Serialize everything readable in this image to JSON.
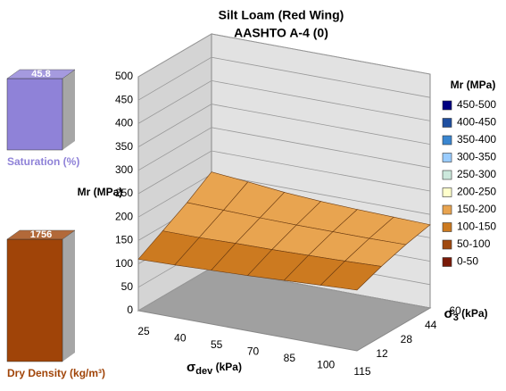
{
  "chart_data": {
    "type": "surface",
    "title": "Silt Loam (Red Wing)",
    "subtitle": "AASHTO A-4 (0)",
    "zlabel": "Mr (MPa)",
    "xlabel": {
      "symbol": "σ",
      "sub": "dev",
      "unit": " (kPa)"
    },
    "ylabel": {
      "symbol": "σ",
      "sub": "3",
      "unit": " (kPa)"
    },
    "x": [
      25,
      40,
      55,
      70,
      85,
      100,
      115
    ],
    "y": [
      12,
      28,
      44,
      60
    ],
    "values": [
      [
        110,
        112,
        115,
        118,
        122,
        126,
        130
      ],
      [
        140,
        140,
        142,
        143,
        145,
        147,
        150
      ],
      [
        170,
        168,
        166,
        165,
        165,
        165,
        166
      ],
      [
        205,
        198,
        190,
        185,
        182,
        180,
        178
      ]
    ],
    "zlim": [
      0,
      500
    ],
    "zticks": [
      0,
      50,
      100,
      150,
      200,
      250,
      300,
      350,
      400,
      450,
      500
    ],
    "legend_title": "Mr (MPa)",
    "legend": [
      {
        "label": "450-500",
        "color": "#000080"
      },
      {
        "label": "400-450",
        "color": "#1f4fa0"
      },
      {
        "label": "350-400",
        "color": "#3a86d0"
      },
      {
        "label": "300-350",
        "color": "#99ccff"
      },
      {
        "label": "250-300",
        "color": "#cce8dc"
      },
      {
        "label": "200-250",
        "color": "#ffffcc"
      },
      {
        "label": "150-200",
        "color": "#e8a450"
      },
      {
        "label": "100-150",
        "color": "#cc7a20"
      },
      {
        "label": "50-100",
        "color": "#a04a10"
      },
      {
        "label": "0-50",
        "color": "#7a1a08"
      }
    ]
  },
  "indicators": [
    {
      "value": 45.8,
      "label": "Saturation (%)",
      "color": "#8f82d8"
    },
    {
      "value": 1756,
      "label": "Dry Density (kg/m³)",
      "color": "#a04408"
    }
  ]
}
